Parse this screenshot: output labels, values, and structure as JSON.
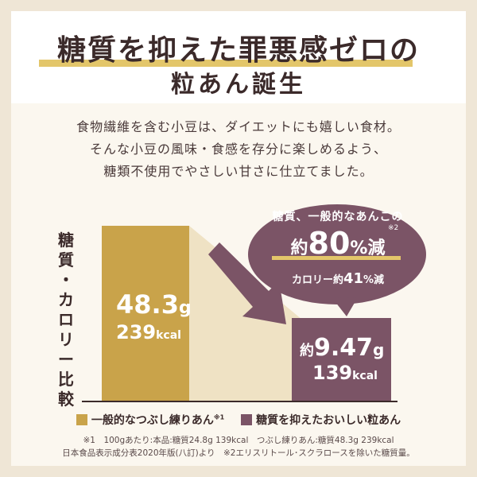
{
  "header": {
    "title_line1": "糖質を抑えた罪悪感ゼロの",
    "title_line2": "粒あん誕生"
  },
  "description": [
    "食物繊維を含む小豆は、ダイエットにも嬉しい食材。",
    "そんな小豆の風味・食感を存分に楽しめるよう、",
    "糖類不使用でやさしい甘さに仕立てました。"
  ],
  "chart_label": [
    "糖",
    "質",
    "・",
    "カ",
    "ロ",
    "リ",
    "ー",
    "比",
    "較"
  ],
  "bubble": {
    "line1": "糖質、一般的なあんこの",
    "note_mark": "※2",
    "prefix": "約",
    "value": "80",
    "suffix": "%減",
    "line3_prefix": "カロリー約",
    "line3_value": "41",
    "line3_suffix": "%減"
  },
  "chart_data": {
    "type": "bar",
    "categories": [
      "一般的なつぶし練りあん",
      "糖質を抑えたおいしい粒あん"
    ],
    "series": [
      {
        "name": "糖質(g)",
        "values": [
          48.3,
          9.47
        ]
      },
      {
        "name": "カロリー(kcal)",
        "values": [
          239,
          139
        ]
      }
    ],
    "colors": [
      "#c9a34a",
      "#7b5466"
    ],
    "labels": [
      {
        "carb": "48.3",
        "carb_unit": "g",
        "kcal": "239",
        "kcal_unit": "kcal"
      },
      {
        "prefix": "約",
        "carb": "9.47",
        "carb_unit": "g",
        "kcal": "139",
        "kcal_unit": "kcal"
      }
    ]
  },
  "legend": [
    {
      "label": "一般的なつぶし練りあん",
      "mark": "※1",
      "color": "#c9a34a"
    },
    {
      "label": "糖質を抑えたおいしい粒あん",
      "mark": "",
      "color": "#7b5466"
    }
  ],
  "notes": [
    "※1　100gあたり:本品:糖質24.8g 139kcal　つぶし練りあん:糖質48.3g 239kcal",
    "日本食品表示成分表2020年版(八訂)より　※2エリスリトール･スクラロースを除いた糖質量。"
  ]
}
